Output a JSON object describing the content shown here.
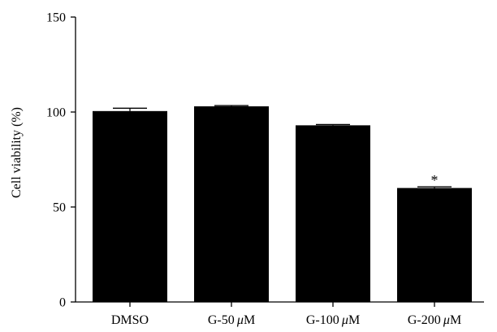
{
  "chart_data": {
    "type": "bar",
    "title": "",
    "xlabel": "",
    "ylabel": "Cell viability (%)",
    "ylim": [
      0,
      150
    ],
    "yticks": [
      0,
      50,
      100,
      150
    ],
    "grid": false,
    "legend": "none",
    "categories": [
      "DMSO",
      "G-50 μM",
      "G-100 μM",
      "G-200 μM"
    ],
    "category_labels": [
      {
        "prefix": "DMSO",
        "unit": ""
      },
      {
        "prefix": "G-50 ",
        "unit": "μM"
      },
      {
        "prefix": "G-100 ",
        "unit": "μM"
      },
      {
        "prefix": "G-200 ",
        "unit": "μM"
      }
    ],
    "values": [
      100.5,
      103,
      93,
      60
    ],
    "errors": [
      1.5,
      0.4,
      0.4,
      0.6
    ],
    "annotations": [
      {
        "category_index": 3,
        "text": "*"
      }
    ],
    "bar_color": "#000000",
    "axis_color": "#000000"
  }
}
